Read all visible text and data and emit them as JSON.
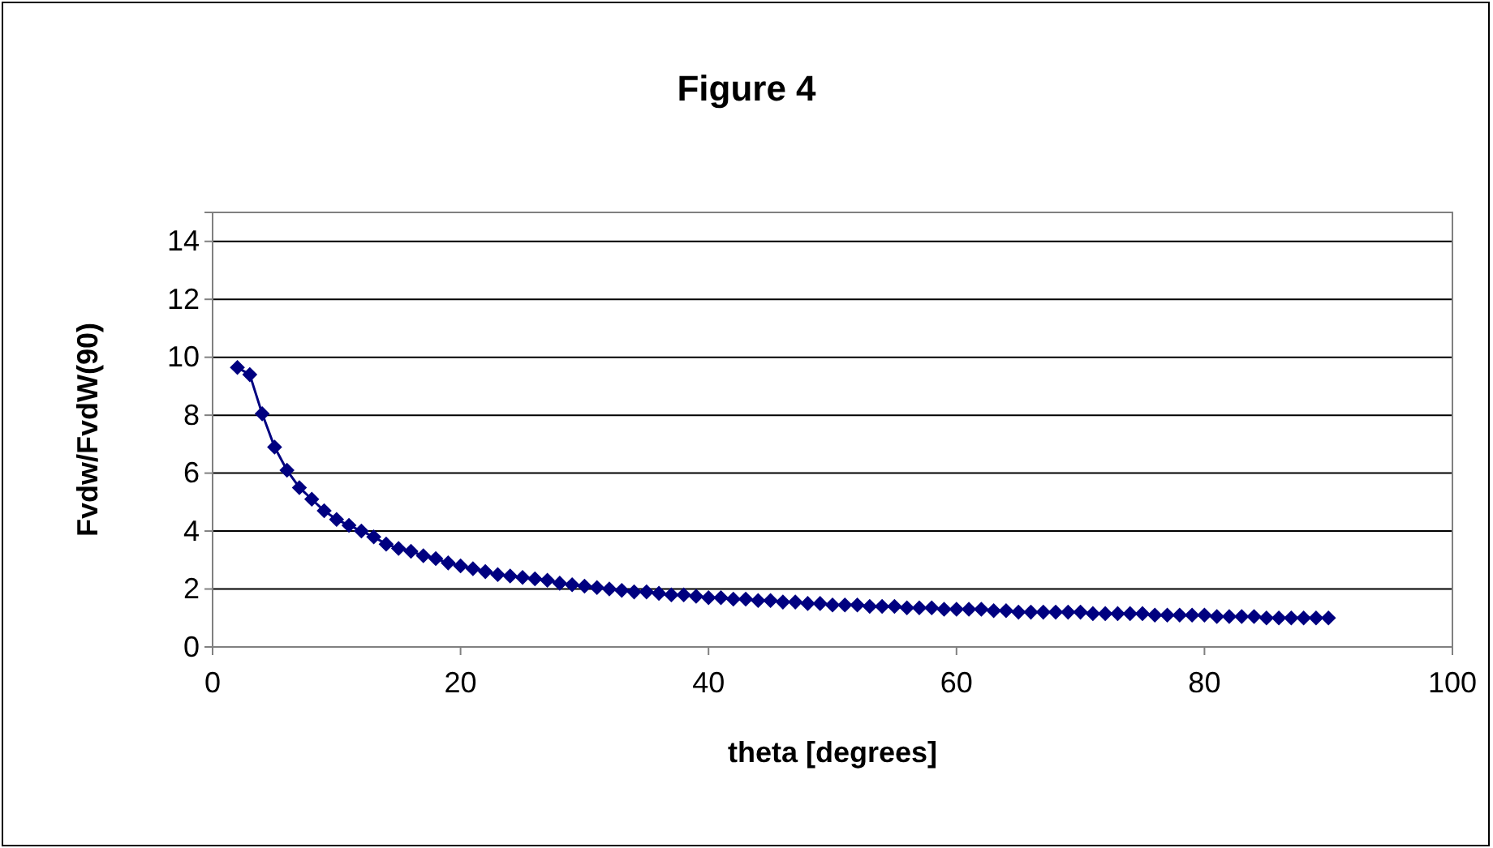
{
  "chart_data": {
    "type": "line",
    "title": "Figure 4",
    "xlabel": "theta [degrees]",
    "ylabel": "Fvdw/FvdW(90)",
    "x": [
      2,
      3,
      4,
      5,
      6,
      7,
      8,
      9,
      10,
      11,
      12,
      13,
      14,
      15,
      16,
      17,
      18,
      19,
      20,
      21,
      22,
      23,
      24,
      25,
      26,
      27,
      28,
      29,
      30,
      31,
      32,
      33,
      34,
      35,
      36,
      37,
      38,
      39,
      40,
      41,
      42,
      43,
      44,
      45,
      46,
      47,
      48,
      49,
      50,
      51,
      52,
      53,
      54,
      55,
      56,
      57,
      58,
      59,
      60,
      61,
      62,
      63,
      64,
      65,
      66,
      67,
      68,
      69,
      70,
      71,
      72,
      73,
      74,
      75,
      76,
      77,
      78,
      79,
      80,
      81,
      82,
      83,
      84,
      85,
      86,
      87,
      88,
      89,
      90
    ],
    "series": [
      {
        "color": "#000080",
        "values": [
          9.65,
          9.4,
          8.05,
          6.9,
          6.1,
          5.5,
          5.1,
          4.7,
          4.4,
          4.2,
          4.0,
          3.8,
          3.55,
          3.4,
          3.3,
          3.15,
          3.05,
          2.9,
          2.8,
          2.7,
          2.6,
          2.5,
          2.45,
          2.4,
          2.35,
          2.3,
          2.2,
          2.15,
          2.1,
          2.05,
          2.0,
          1.95,
          1.9,
          1.9,
          1.85,
          1.8,
          1.8,
          1.75,
          1.7,
          1.7,
          1.65,
          1.65,
          1.6,
          1.6,
          1.55,
          1.55,
          1.5,
          1.5,
          1.45,
          1.45,
          1.45,
          1.4,
          1.4,
          1.4,
          1.35,
          1.35,
          1.35,
          1.3,
          1.3,
          1.3,
          1.3,
          1.25,
          1.25,
          1.2,
          1.2,
          1.2,
          1.2,
          1.2,
          1.2,
          1.15,
          1.15,
          1.15,
          1.15,
          1.15,
          1.1,
          1.1,
          1.1,
          1.1,
          1.1,
          1.05,
          1.05,
          1.05,
          1.05,
          1.0,
          1.0,
          1.0,
          1.0,
          1.0,
          1.0
        ]
      }
    ],
    "xlim": [
      0,
      100
    ],
    "xticks": [
      0,
      20,
      40,
      60,
      80,
      100
    ],
    "ylim": [
      0,
      15
    ],
    "yticks": [
      0,
      2,
      4,
      6,
      8,
      10,
      12,
      14
    ],
    "grid": "y",
    "marker": "diamond",
    "line_style": "solid"
  }
}
